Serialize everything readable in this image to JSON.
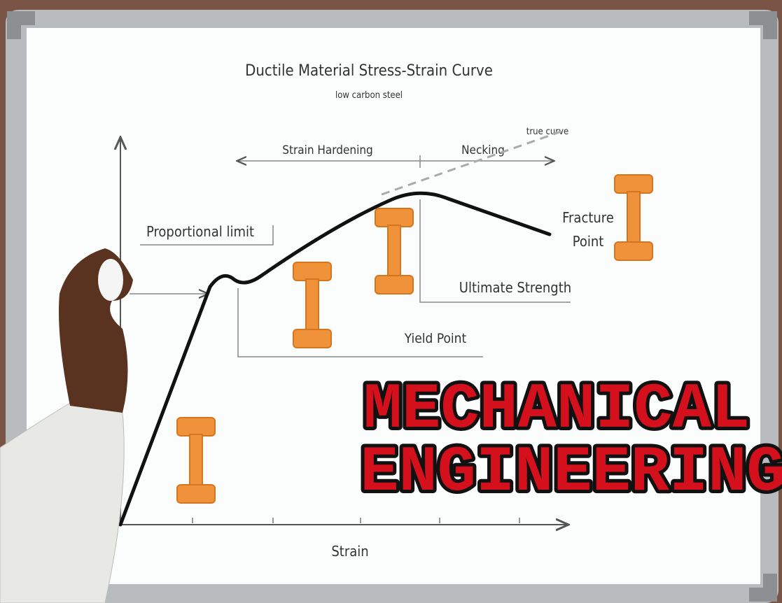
{
  "diagram": {
    "title": "Ductile Material Stress-Strain Curve",
    "subtitle": "low carbon steel",
    "labels": {
      "true_curve": "true curve",
      "strain_hardening": "Strain Hardening",
      "necking": "Necking",
      "proportional_limit": "Proportional limit",
      "fracture_point": [
        "Fracture",
        "Point"
      ],
      "ultimate_strength": "Ultimate Strength",
      "yield_point": "Yield Point",
      "x_axis": "Strain"
    },
    "banner": [
      "MECHANICAL",
      "ENGINEERING"
    ]
  }
}
